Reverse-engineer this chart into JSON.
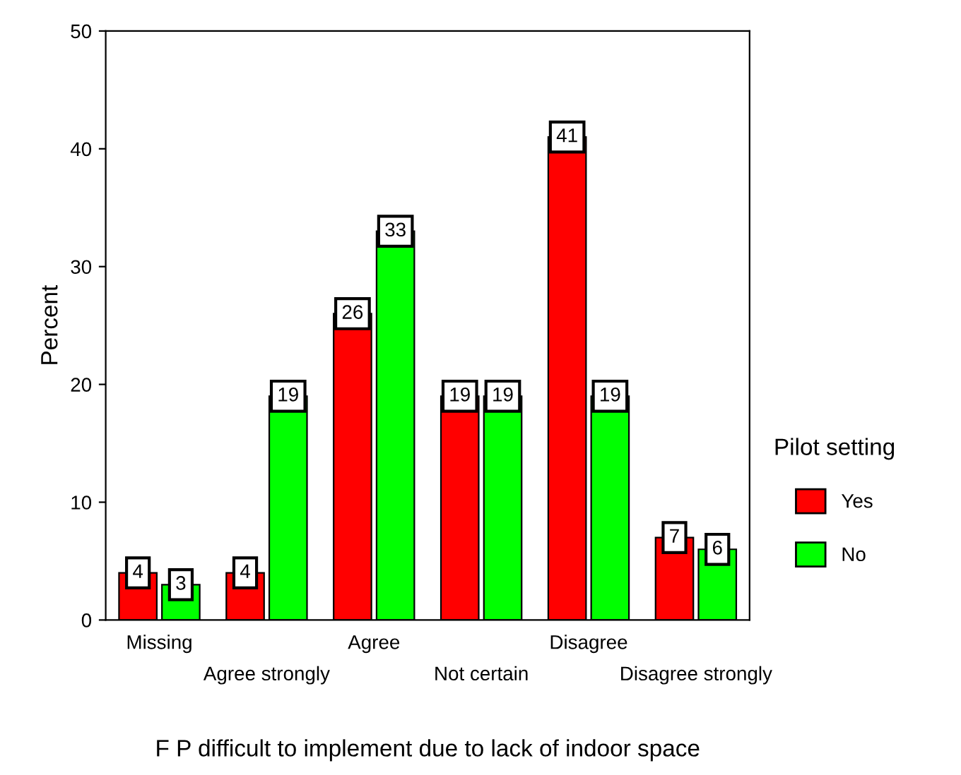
{
  "chart_data": {
    "type": "bar",
    "xlabel": "F P difficult to implement due to lack of indoor space",
    "ylabel": "Percent",
    "legend_title": "Pilot setting",
    "legend": "right",
    "categories": [
      "Missing",
      "Agree strongly",
      "Agree",
      "Not certain",
      "Disagree",
      "Disagree strongly"
    ],
    "series": [
      {
        "name": "Yes",
        "color": "#ff0000",
        "values": [
          4,
          4,
          26,
          19,
          41,
          7
        ]
      },
      {
        "name": "No",
        "color": "#00ff00",
        "values": [
          3,
          19,
          33,
          19,
          19,
          6
        ]
      }
    ],
    "ylim": [
      0,
      50
    ],
    "yticks": [
      0,
      10,
      20,
      30,
      40,
      50
    ],
    "data_labels": true,
    "grid": false
  }
}
